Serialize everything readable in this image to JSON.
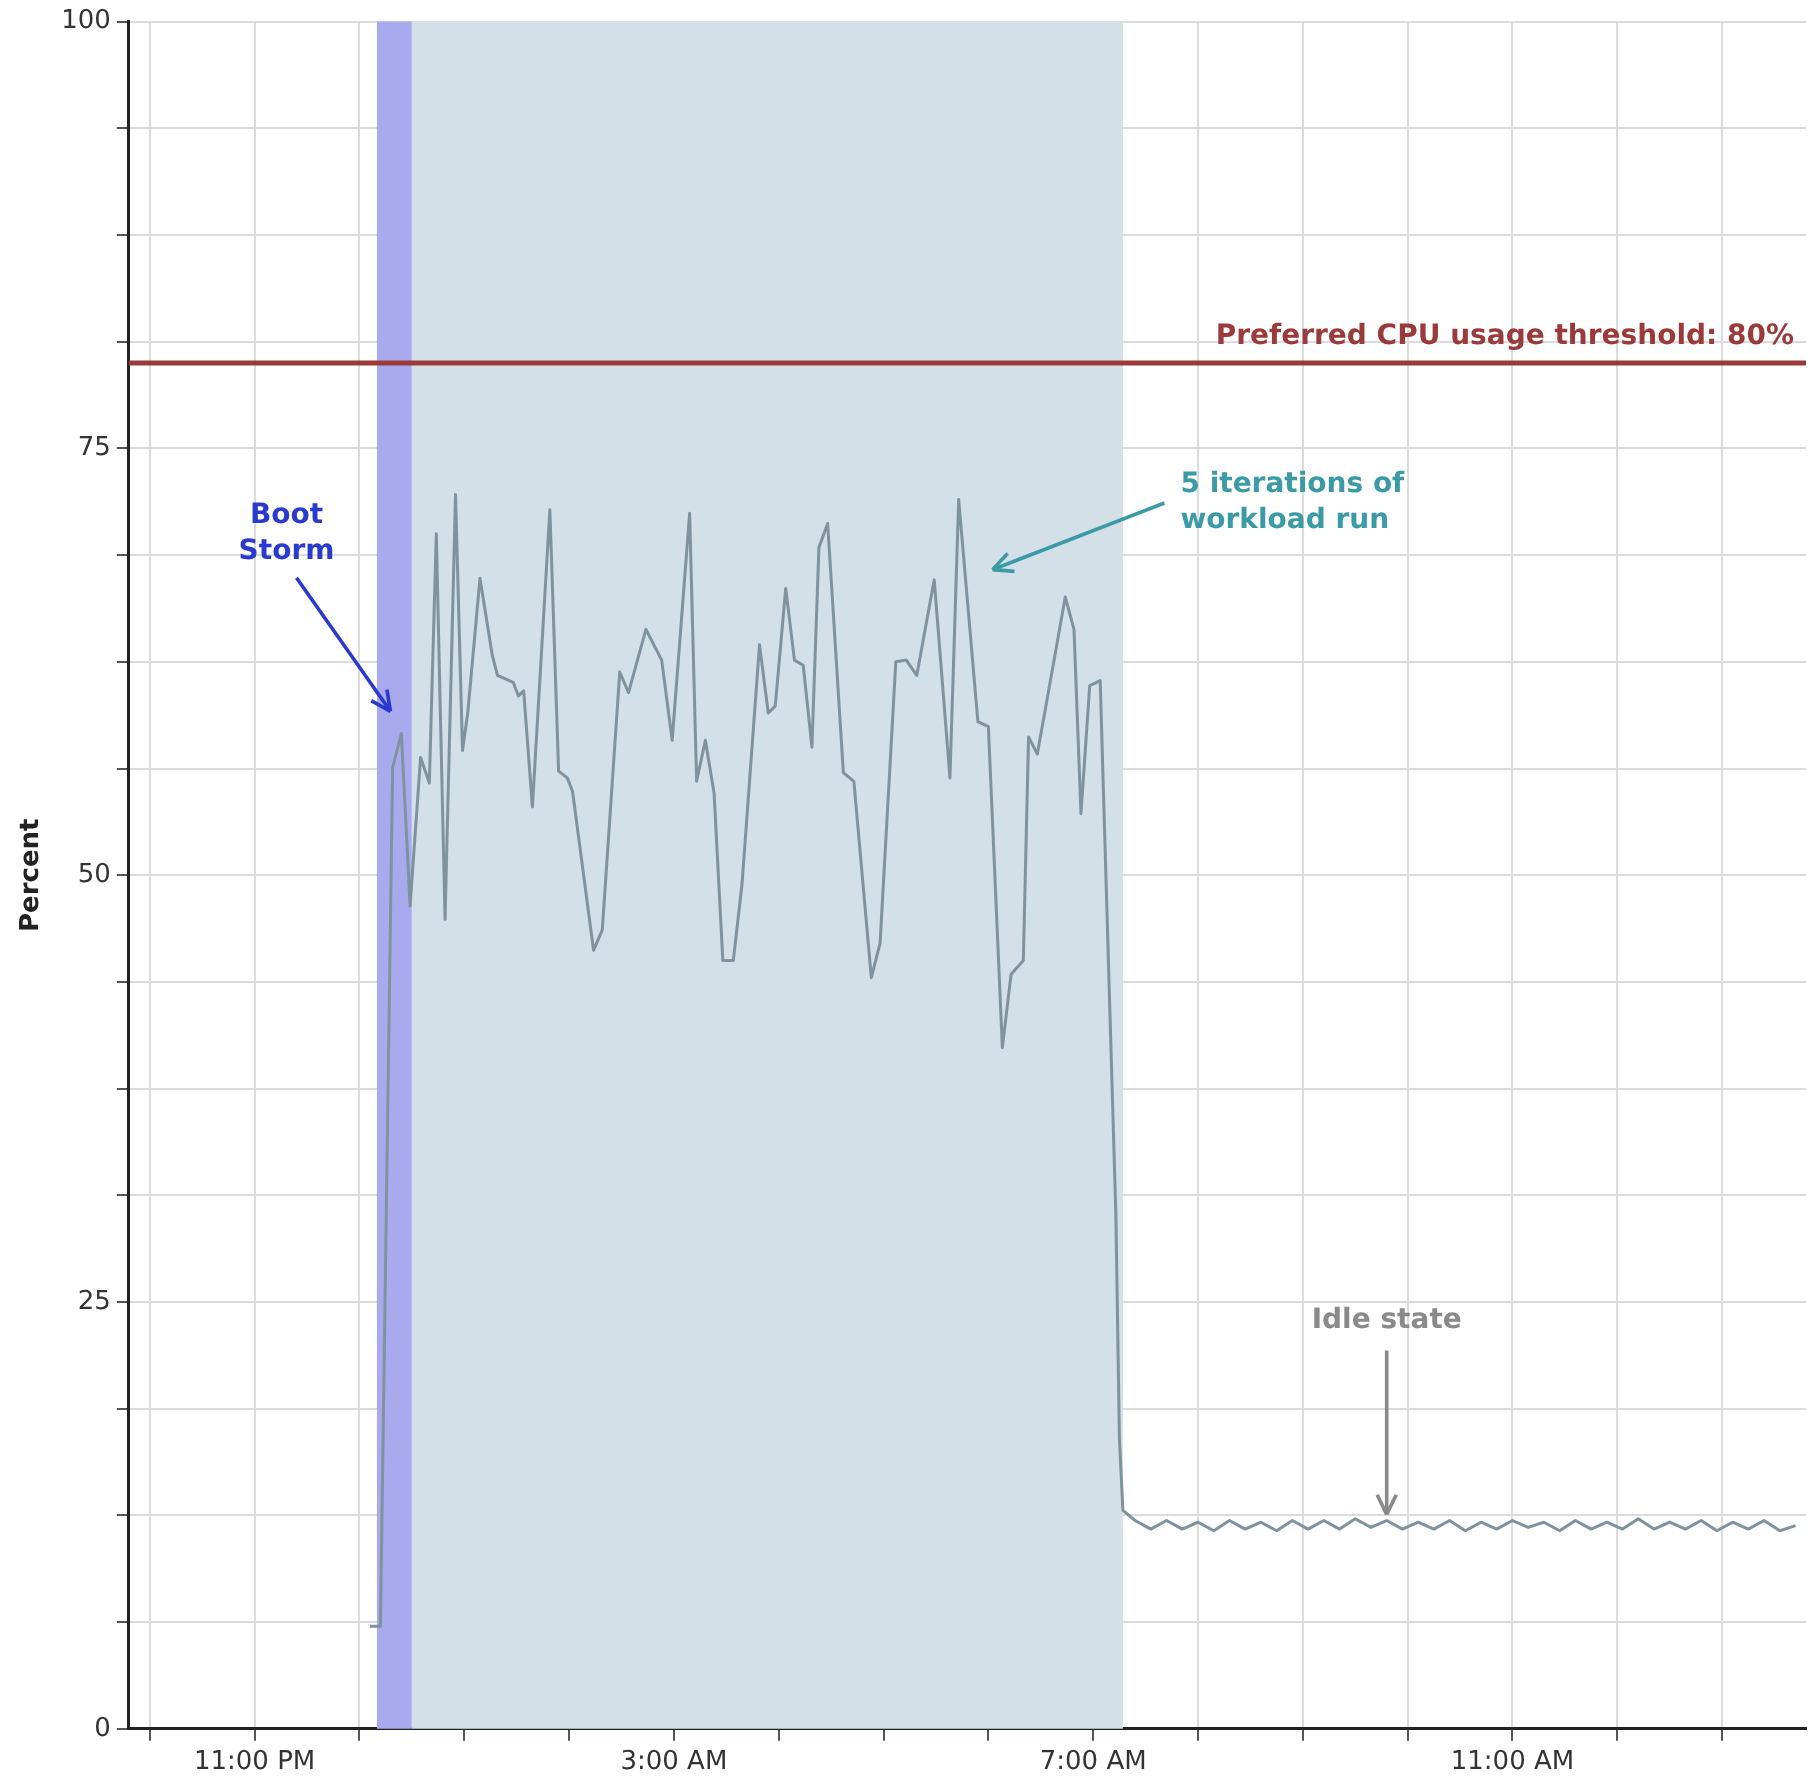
{
  "chart_data": {
    "type": "line",
    "ylabel": "Percent",
    "x": [
      "2000-01-02T00:06",
      "2000-01-02T00:12",
      "2000-01-02T00:19",
      "2000-01-02T00:24",
      "2000-01-02T00:29",
      "2000-01-02T00:35",
      "2000-01-02T00:40",
      "2000-01-02T00:44",
      "2000-01-02T00:49",
      "2000-01-02T00:55",
      "2000-01-02T00:59",
      "2000-01-02T01:02",
      "2000-01-02T01:09",
      "2000-01-02T01:16",
      "2000-01-02T01:19",
      "2000-01-02T01:28",
      "2000-01-02T01:31",
      "2000-01-02T01:34",
      "2000-01-02T01:39",
      "2000-01-02T01:49",
      "2000-01-02T01:54",
      "2000-01-02T01:59",
      "2000-01-02T02:02",
      "2000-01-02T02:14",
      "2000-01-02T02:19",
      "2000-01-02T02:29",
      "2000-01-02T02:34",
      "2000-01-02T02:44",
      "2000-01-02T02:53",
      "2000-01-02T02:59",
      "2000-01-02T03:09",
      "2000-01-02T03:13",
      "2000-01-02T03:18",
      "2000-01-02T03:23",
      "2000-01-02T03:28",
      "2000-01-02T03:34",
      "2000-01-02T03:39",
      "2000-01-02T03:49",
      "2000-01-02T03:54",
      "2000-01-02T03:58",
      "2000-01-02T04:04",
      "2000-01-02T04:09",
      "2000-01-02T04:14",
      "2000-01-02T04:19",
      "2000-01-02T04:23",
      "2000-01-02T04:28",
      "2000-01-02T04:37",
      "2000-01-02T04:43",
      "2000-01-02T04:53",
      "2000-01-02T04:58",
      "2000-01-02T05:07",
      "2000-01-02T05:13",
      "2000-01-02T05:19",
      "2000-01-02T05:29",
      "2000-01-02T05:38",
      "2000-01-02T05:43",
      "2000-01-02T05:54",
      "2000-01-02T06:00",
      "2000-01-02T06:08",
      "2000-01-02T06:13",
      "2000-01-02T06:20",
      "2000-01-02T06:23",
      "2000-01-02T06:28",
      "2000-01-02T06:35",
      "2000-01-02T06:44",
      "2000-01-02T06:49",
      "2000-01-02T06:53",
      "2000-01-02T06:58",
      "2000-01-02T07:04",
      "2000-01-02T07:13",
      "2000-01-02T07:15",
      "2000-01-02T07:17",
      "2000-01-02T07:24",
      "2000-01-02T07:33",
      "2000-01-02T07:42",
      "2000-01-02T07:51",
      "2000-01-02T08:00",
      "2000-01-02T08:09",
      "2000-01-02T08:18",
      "2000-01-02T08:27",
      "2000-01-02T08:36",
      "2000-01-02T08:45",
      "2000-01-02T08:54",
      "2000-01-02T09:03",
      "2000-01-02T09:12",
      "2000-01-02T09:21",
      "2000-01-02T09:30",
      "2000-01-02T09:39",
      "2000-01-02T09:48",
      "2000-01-02T09:57",
      "2000-01-02T10:06",
      "2000-01-02T10:15",
      "2000-01-02T10:24",
      "2000-01-02T10:33",
      "2000-01-02T10:42",
      "2000-01-02T10:51",
      "2000-01-02T11:00",
      "2000-01-02T11:09",
      "2000-01-02T11:18",
      "2000-01-02T11:27",
      "2000-01-02T11:36",
      "2000-01-02T11:45",
      "2000-01-02T11:54",
      "2000-01-02T12:03",
      "2000-01-02T12:12",
      "2000-01-02T12:21",
      "2000-01-02T12:30",
      "2000-01-02T12:39",
      "2000-01-02T12:48",
      "2000-01-02T12:57",
      "2000-01-02T13:06",
      "2000-01-02T13:15",
      "2000-01-02T13:24",
      "2000-01-02T13:33",
      "2000-01-02T13:42"
    ],
    "series": [
      {
        "color": "#7f939f",
        "values": [
          6,
          6,
          56.3,
          58.3,
          48.2,
          56.9,
          55.4,
          70,
          47.4,
          72.3,
          57.3,
          59.5,
          67.4,
          62.9,
          61.7,
          61.3,
          60.5,
          60.8,
          54,
          71.4,
          56.1,
          55.7,
          54.9,
          45.6,
          46.8,
          61.9,
          60.7,
          64.4,
          62.6,
          57.9,
          71.2,
          55.5,
          57.9,
          54.8,
          45,
          45,
          49.5,
          63.5,
          59.5,
          59.9,
          66.8,
          62.6,
          62.3,
          57.5,
          69.2,
          70.6,
          56,
          55.5,
          44,
          46,
          62.5,
          62.6,
          61.7,
          67.3,
          55.7,
          72,
          59,
          58.7,
          39.9,
          44.2,
          45,
          58.1,
          57.1,
          61.1,
          66.3,
          64.4,
          53.6,
          61.1,
          61.4,
          30,
          17,
          12.8,
          12.2,
          11.7,
          12.2,
          11.7,
          12.1,
          11.6,
          12.2,
          11.7,
          12.1,
          11.6,
          12.2,
          11.7,
          12.2,
          11.7,
          12.3,
          11.8,
          12.2,
          11.7,
          12.1,
          11.7,
          12.2,
          11.6,
          12.1,
          11.7,
          12.2,
          11.8,
          12.1,
          11.6,
          12.2,
          11.7,
          12.1,
          11.7,
          12.3,
          11.7,
          12.1,
          11.7,
          12.2,
          11.6,
          12.1,
          11.7,
          12.2,
          11.6,
          11.9
        ]
      }
    ],
    "xlim": [
      "2000-01-01T21:48",
      "2000-01-02T13:48"
    ],
    "xticks": [
      {
        "value": "2000-01-01T22:00",
        "label": null
      },
      {
        "value": "2000-01-01T23:00",
        "label": "11:00 PM"
      },
      {
        "value": "2000-01-02T00:00",
        "label": null
      },
      {
        "value": "2000-01-02T01:00",
        "label": null
      },
      {
        "value": "2000-01-02T02:00",
        "label": null
      },
      {
        "value": "2000-01-02T03:00",
        "label": "3:00 AM"
      },
      {
        "value": "2000-01-02T04:00",
        "label": null
      },
      {
        "value": "2000-01-02T05:00",
        "label": null
      },
      {
        "value": "2000-01-02T06:00",
        "label": null
      },
      {
        "value": "2000-01-02T07:00",
        "label": "7:00 AM"
      },
      {
        "value": "2000-01-02T08:00",
        "label": null
      },
      {
        "value": "2000-01-02T09:00",
        "label": null
      },
      {
        "value": "2000-01-02T10:00",
        "label": null
      },
      {
        "value": "2000-01-02T11:00",
        "label": "11:00 AM"
      },
      {
        "value": "2000-01-02T12:00",
        "label": null
      },
      {
        "value": "2000-01-02T13:00",
        "label": null
      }
    ],
    "ylim": [
      0,
      100
    ],
    "yticks": [
      0,
      {
        "value": 6.25,
        "label": null
      },
      {
        "value": 12.5,
        "label": null
      },
      {
        "value": 18.75,
        "label": null
      },
      25,
      {
        "value": 31.25,
        "label": null
      },
      {
        "value": 37.5,
        "label": null
      },
      {
        "value": 43.75,
        "label": null
      },
      50,
      {
        "value": 56.25,
        "label": null
      },
      {
        "value": 62.5,
        "label": null
      },
      {
        "value": 68.75,
        "label": null
      },
      75,
      {
        "value": 81.25,
        "label": null
      },
      {
        "value": 87.5,
        "label": null
      },
      {
        "value": 93.75,
        "label": null
      },
      100
    ],
    "grid": true,
    "legend": false,
    "marker": "none",
    "line_style": "solid",
    "ref_lines": [
      {
        "axis": "y",
        "value": 80,
        "label": "Preferred CPU usage threshold: 80%",
        "color": "#9b3a3a"
      }
    ],
    "bands": [
      {
        "axis": "x",
        "from": "2000-01-02T00:10",
        "to": "2000-01-02T00:30",
        "color": "#a9a9ee"
      },
      {
        "axis": "x",
        "from": "2000-01-02T00:30",
        "to": "2000-01-02T07:17",
        "color": "#d3e0e7"
      }
    ],
    "annotations": [
      "Boot Storm",
      "5 iterations of workload run",
      {
        "text": "Idle state",
        "x": "2000-01-02T09:48",
        "y": 12.2
      }
    ]
  }
}
